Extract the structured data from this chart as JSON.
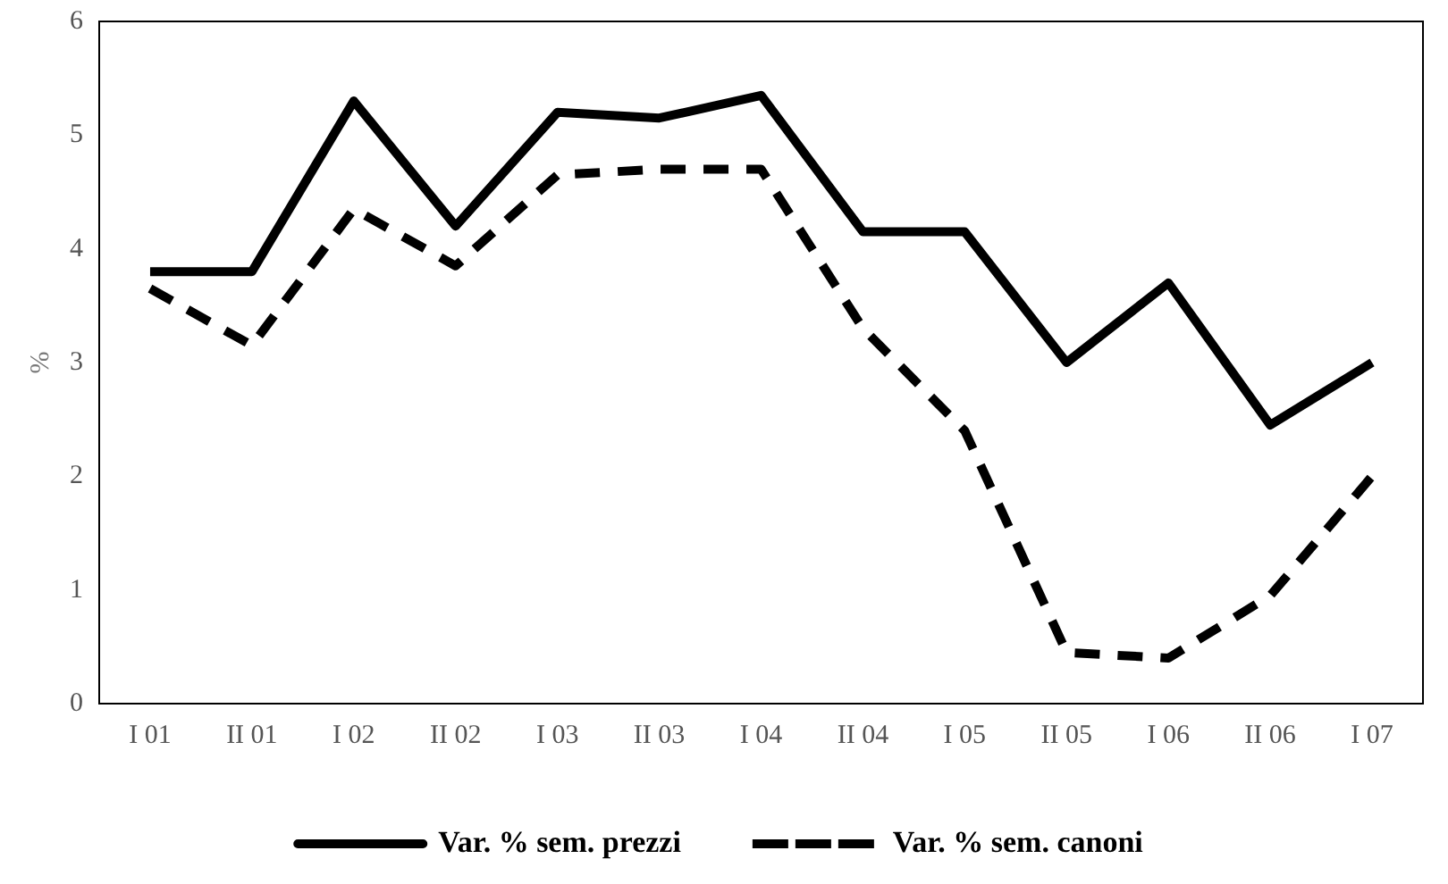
{
  "chart_data": {
    "type": "line",
    "ylabel": "%",
    "categories": [
      "I 01",
      "II 01",
      "I 02",
      "II 02",
      "I 03",
      "II 03",
      "I 04",
      "II 04",
      "I 05",
      "II 05",
      "I 06",
      "II 06",
      "I 07"
    ],
    "series": [
      {
        "name": "Var. % sem. prezzi",
        "color": "#000000",
        "line_style": "solid",
        "values": [
          3.8,
          3.8,
          5.3,
          4.2,
          5.2,
          5.15,
          5.35,
          4.15,
          4.15,
          3.0,
          3.7,
          2.45,
          3.0
        ]
      },
      {
        "name": "Var. % sem. canoni",
        "color": "#000000",
        "line_style": "dashed",
        "values": [
          3.65,
          3.15,
          4.35,
          3.85,
          4.65,
          4.7,
          4.7,
          3.3,
          2.4,
          0.45,
          0.4,
          0.95,
          2.0
        ]
      }
    ],
    "ylim": [
      0,
      6
    ],
    "yticks": [
      0,
      1,
      2,
      3,
      4,
      5,
      6
    ],
    "grid": false,
    "legend": "bottom",
    "marker": "none"
  }
}
